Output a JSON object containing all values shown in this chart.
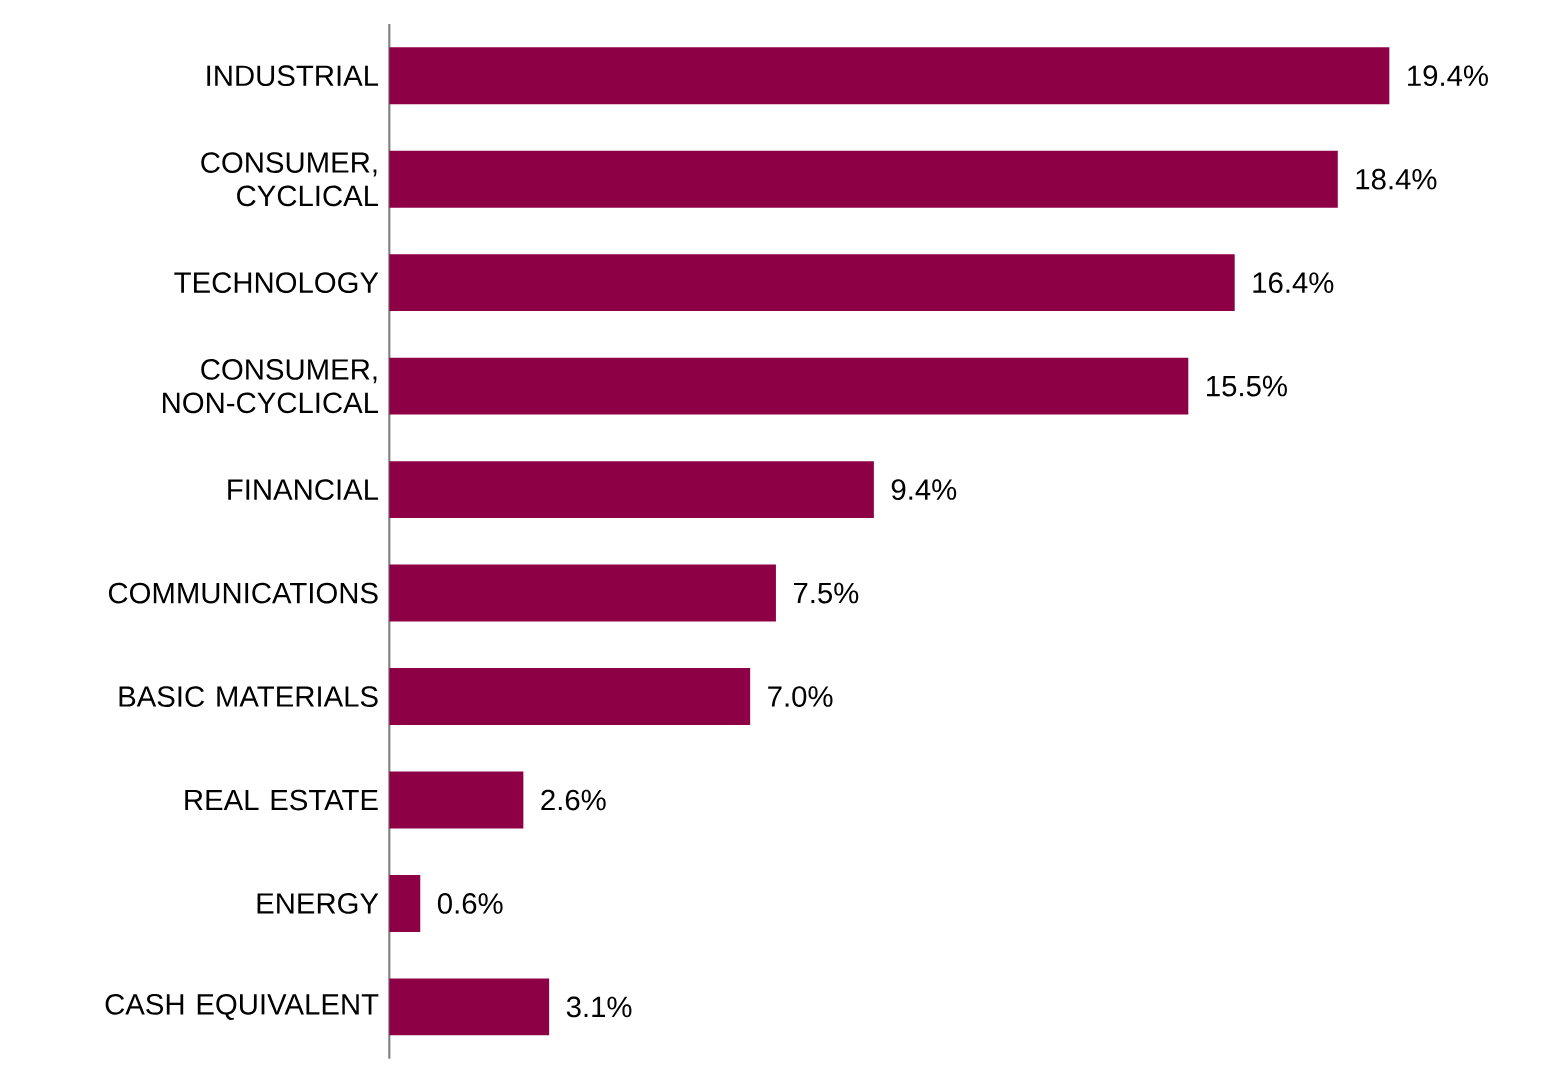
{
  "chart_data": {
    "type": "bar",
    "orientation": "horizontal",
    "color": "#8e0045",
    "categories": [
      "INDUSTRIAL",
      "CONSUMER, CYCLICAL",
      "TECHNOLOGY",
      "CONSUMER, NON-CYCLICAL",
      "FINANCIAL",
      "COMMUNICATIONS",
      "BASIC MATERIALS",
      "REAL ESTATE",
      "ENERGY",
      "CASH EQUIVALENT"
    ],
    "values": [
      19.4,
      18.4,
      16.4,
      15.5,
      9.4,
      7.5,
      7.0,
      2.6,
      0.6,
      3.1
    ],
    "value_labels": [
      "19.4%",
      "18.4%",
      "16.4%",
      "15.5%",
      "9.4%",
      "7.5%",
      "7.0%",
      "2.6%",
      "0.6%",
      "3.1%"
    ]
  }
}
